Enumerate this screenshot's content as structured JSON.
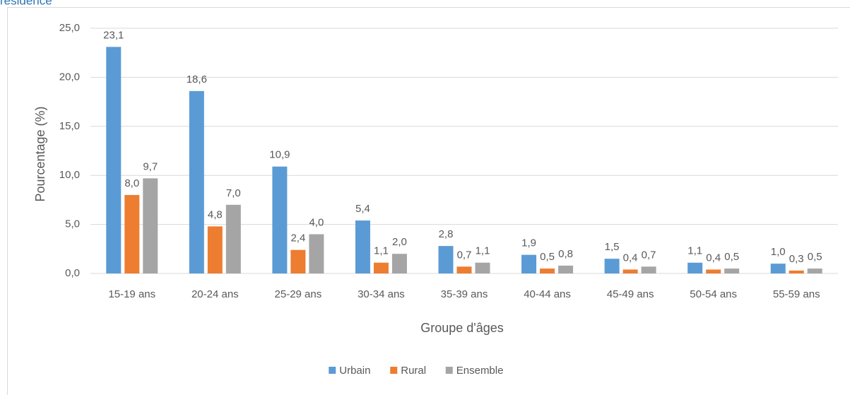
{
  "chart_data": {
    "type": "bar",
    "title": "résidence",
    "x_label": "Groupe d'âges",
    "y_label": "Pourcentage (%)",
    "categories": [
      "15-19 ans",
      "20-24 ans",
      "25-29 ans",
      "30-34 ans",
      "35-39 ans",
      "40-44 ans",
      "45-49 ans",
      "50-54 ans",
      "55-59 ans"
    ],
    "series": [
      {
        "name": "Urbain",
        "color": "#5b9bd5",
        "values": [
          23.1,
          18.6,
          10.9,
          5.4,
          2.8,
          1.9,
          1.5,
          1.1,
          1.0
        ],
        "value_labels": [
          "23,1",
          "18,6",
          "10,9",
          "5,4",
          "2,8",
          "1,9",
          "1,5",
          "1,1",
          "1,0"
        ]
      },
      {
        "name": "Rural",
        "color": "#ed7d31",
        "values": [
          8.0,
          4.8,
          2.4,
          1.1,
          0.7,
          0.5,
          0.4,
          0.4,
          0.3
        ],
        "value_labels": [
          "8,0",
          "4,8",
          "2,4",
          "1,1",
          "0,7",
          "0,5",
          "0,4",
          "0,4",
          "0,3"
        ]
      },
      {
        "name": "Ensemble",
        "color": "#a5a5a5",
        "values": [
          9.7,
          7.0,
          4.0,
          2.0,
          1.1,
          0.8,
          0.7,
          0.5,
          0.5
        ],
        "value_labels": [
          "9,7",
          "7,0",
          "4,0",
          "2,0",
          "1,1",
          "0,8",
          "0,7",
          "0,5",
          "0,5"
        ]
      }
    ],
    "ylim": [
      0,
      25
    ],
    "yticks": [
      {
        "value": 0,
        "label": "0,0"
      },
      {
        "value": 5,
        "label": "5,0"
      },
      {
        "value": 10,
        "label": "10,0"
      },
      {
        "value": 15,
        "label": "15,0"
      },
      {
        "value": 20,
        "label": "20,0"
      },
      {
        "value": 25,
        "label": "25,0"
      }
    ],
    "grid": true,
    "legend": "bottom"
  }
}
